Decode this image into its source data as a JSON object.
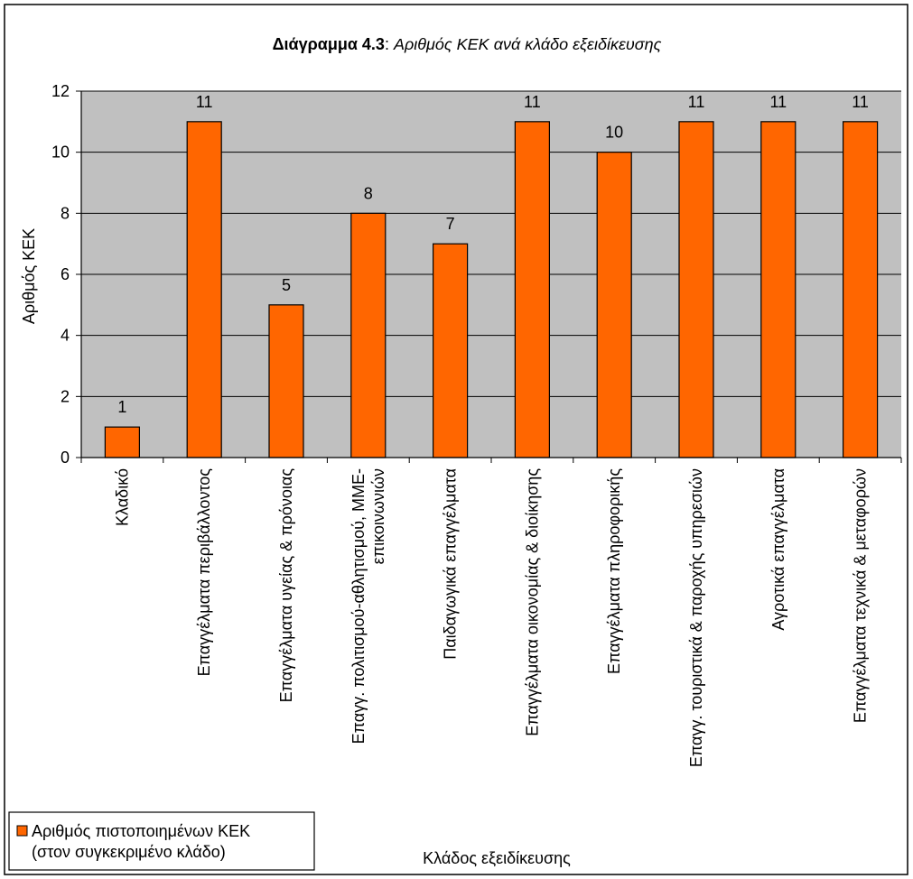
{
  "chart_data": {
    "type": "bar",
    "title_bold": "Διάγραμμα 4.3",
    "title_sep": ": ",
    "title_rest": "Αριθμός ΚΕΚ ανά κλάδο εξειδίκευσης",
    "xlabel": "Κλάδος εξειδίκευσης",
    "ylabel": "Αριθμός ΚΕΚ",
    "ylim": [
      0,
      12
    ],
    "yticks": [
      0,
      2,
      4,
      6,
      8,
      10,
      12
    ],
    "grid": true,
    "categories": [
      [
        "Κλαδικό"
      ],
      [
        "Επαγγέλματα περιβάλλοντος"
      ],
      [
        "Επαγγέλματα υγείας & πρόνοιας"
      ],
      [
        "Επαγγ. πολιτισμού-αθλητισμού, ΜΜΕ-",
        "επικοινωνιών"
      ],
      [
        "Παιδαγωγικά επαγγέλματα"
      ],
      [
        "Επαγγέλματα οικονομίας & διοίκησης"
      ],
      [
        "Επαγγέλματα πληροφορικής"
      ],
      [
        "Επαγγ. τουριστικά & παροχής υπηρεσιών"
      ],
      [
        "Αγροτικά επαγγέλματα"
      ],
      [
        "Επαγγέλματα τεχνικά & μεταφορών"
      ]
    ],
    "series": [
      {
        "name_lines": [
          "Αριθμός πιστοποιημένων ΚΕΚ",
          "(στον συγκεκριμένο κλάδο)"
        ],
        "values": [
          1,
          11,
          5,
          8,
          7,
          11,
          10,
          11,
          11,
          11
        ]
      }
    ],
    "legend_position": "bottom-left",
    "colors": {
      "bar": "#FF6600",
      "plot_bg": "#C0C0C0",
      "grid": "#000000",
      "frame": "#000000"
    }
  }
}
